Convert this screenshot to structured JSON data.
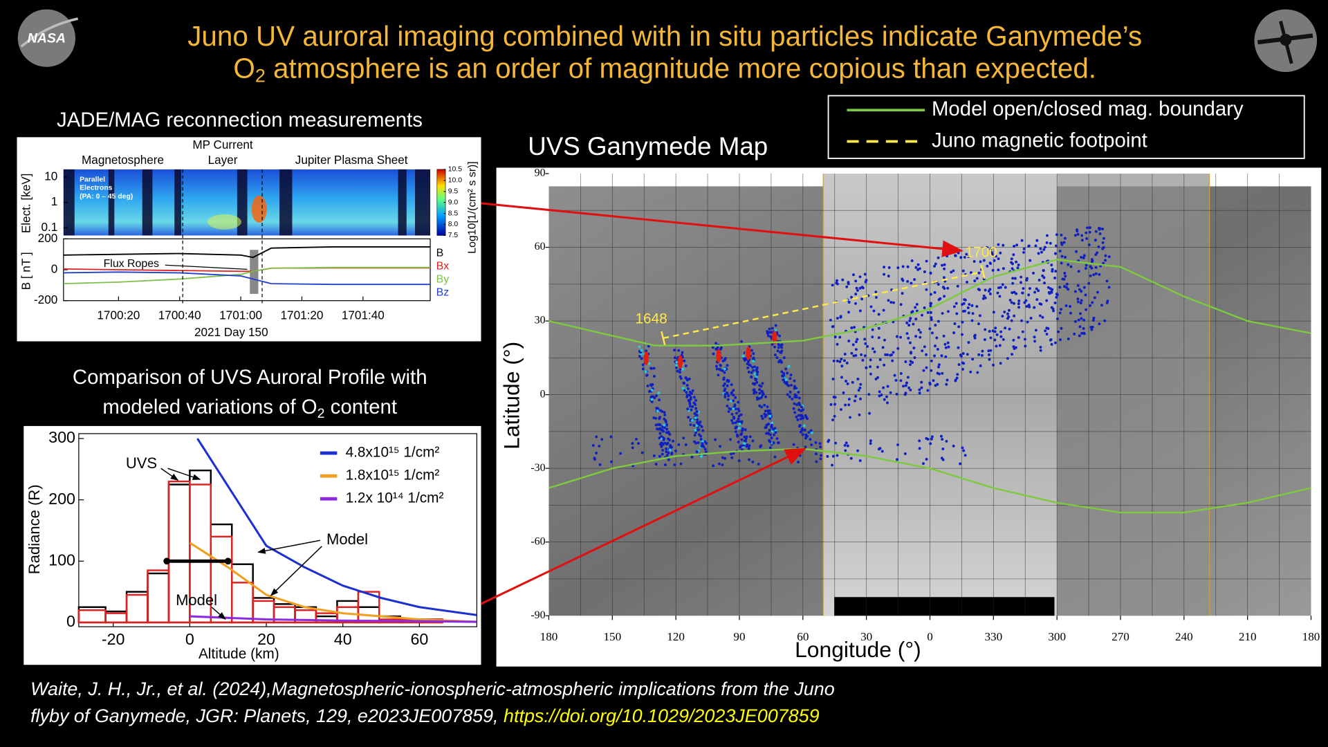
{
  "header": {
    "title_line1": "Juno UV auroral imaging combined with in situ particles indicate Ganymede’s",
    "title_line2": {
      "before": "O",
      "subscript": "2",
      "after": " atmosphere is an order of magnitude more copious than expected."
    }
  },
  "logos": {
    "left": "NASA"
  },
  "citation": {
    "line1": "Waite, J. H., Jr., et al. (2024),Magnetospheric-ionospheric-atmospheric implications from the Juno",
    "line2": "flyby of Ganymede, JGR: Planets, 129, e2023JE007859, ",
    "link": "https://doi.org/10.1029/2023JE007859"
  },
  "chart_data": [
    {
      "type": "spectrogram_timeseries",
      "title": "JADE/MAG reconnection measurements",
      "region_labels": [
        [
          "Magnetosphere"
        ],
        [
          "MP Current",
          "Layer"
        ],
        [
          "Jupiter Plasma Sheet"
        ]
      ],
      "xlim": [
        2,
        122
      ],
      "xticks": [
        {
          "value": 20,
          "label": "1700:20"
        },
        {
          "value": 40,
          "label": "1700:40"
        },
        {
          "value": 60,
          "label": "1701:00"
        },
        {
          "value": 80,
          "label": "1701:20"
        },
        {
          "value": 100,
          "label": "1701:40"
        }
      ],
      "xlabel": "2021 Day 150",
      "boundaries": [
        41,
        67
      ],
      "spectrogram": {
        "label": [
          "Parallel",
          "Electrons",
          "(PA: 0 – 45 deg)"
        ],
        "ylabel": "Elect. [keV]",
        "log_scale": true,
        "ylim": [
          0.05,
          20
        ],
        "yticks": [
          0.1,
          1,
          10
        ],
        "colorbar": {
          "label": "Log10[1/(cm² s sr)]",
          "lim": [
            7.5,
            10.5
          ],
          "ticks": [
            10.5,
            {
              "value": 10,
              "label": "10.0"
            },
            9.5,
            {
              "value": 9,
              "label": "9.0"
            },
            8.5,
            {
              "value": 8,
              "label": "8.0"
            },
            7.5
          ]
        }
      },
      "mag": {
        "ylabel": "B [ nT ]",
        "ylim": [
          -200,
          200
        ],
        "yticks": [
          200,
          0,
          -200
        ],
        "x": [
          2,
          20,
          40,
          60,
          64,
          70,
          90,
          122
        ],
        "series": [
          {
            "name": "B",
            "color": "#000000",
            "values": [
              95,
              100,
              105,
              95,
              80,
              140,
              148,
              148
            ]
          },
          {
            "name": "Bx",
            "color": "#e02020",
            "values": [
              5,
              0,
              -5,
              -10,
              -10,
              10,
              12,
              12
            ]
          },
          {
            "name": "By",
            "color": "#7cc24a",
            "values": [
              -90,
              -80,
              -60,
              -30,
              -10,
              10,
              15,
              15
            ]
          },
          {
            "name": "Bz",
            "color": "#2040d0",
            "values": [
              -20,
              -15,
              -20,
              -40,
              -60,
              -90,
              -95,
              -95
            ]
          }
        ],
        "annotation": "Flux Ropes"
      }
    },
    {
      "type": "line",
      "title_line1": "Comparison of  UVS Auroral Profile with",
      "title_line2": {
        "before": "modeled variations of O",
        "subscript": "2",
        "after": " content"
      },
      "xlabel": "Altitude (km)",
      "ylabel": "Radiance (R)",
      "xlim": [
        -29,
        75
      ],
      "ylim": [
        -7,
        308
      ],
      "xticks": [
        -20,
        0,
        20,
        40,
        60
      ],
      "yticks": [
        0,
        100,
        200,
        300
      ],
      "bins": [
        -29,
        -22,
        -16.5,
        -11,
        -5.5,
        0,
        5.5,
        11,
        16.5,
        22,
        27.5,
        33,
        38.5,
        44,
        49.5,
        55,
        60.5,
        66,
        71.5
      ],
      "histograms": [
        {
          "color": "#000000",
          "values": [
            25,
            18,
            50,
            80,
            225,
            248,
            160,
            95,
            40,
            30,
            25,
            10,
            35,
            25,
            10,
            5,
            5,
            0
          ]
        },
        {
          "color": "#e02020",
          "values": [
            20,
            15,
            45,
            85,
            230,
            225,
            140,
            65,
            35,
            25,
            20,
            15,
            25,
            50,
            5,
            5,
            5,
            0
          ]
        }
      ],
      "series": [
        {
          "name": "4.8x10¹⁵ 1/cm²",
          "color": "#1c2fd0",
          "x": [
            2,
            20,
            30,
            40,
            50,
            60,
            75
          ],
          "values": [
            300,
            125,
            90,
            60,
            40,
            25,
            12
          ]
        },
        {
          "name": "1.8x10¹⁵ 1/cm²",
          "color": "#f0a020",
          "x": [
            0,
            10,
            20,
            30,
            40,
            50,
            60,
            75
          ],
          "values": [
            130,
            90,
            45,
            25,
            15,
            10,
            5,
            1
          ]
        },
        {
          "name": "1.2x 10¹⁴ 1/cm²",
          "color": "#8a2be2",
          "x": [
            0,
            20,
            40,
            60,
            75
          ],
          "values": [
            10,
            5,
            3,
            2,
            1
          ]
        }
      ],
      "error_bar": {
        "y": 100,
        "x": [
          -6,
          10
        ]
      },
      "annotations": [
        "UVS",
        "Model",
        "Model"
      ]
    },
    {
      "type": "map",
      "title": "UVS Ganymede Map",
      "xlabel": "Longitude (°)",
      "ylabel": "Latitude (°)",
      "xlim": [
        180,
        -180
      ],
      "ylim": [
        90,
        -90
      ],
      "xticks": [
        180,
        150,
        120,
        90,
        60,
        30,
        0,
        {
          "value": -30,
          "label": "330"
        },
        {
          "value": -60,
          "label": "300"
        },
        {
          "value": -90,
          "label": "270"
        },
        {
          "value": -120,
          "label": "240"
        },
        {
          "value": -150,
          "label": "210"
        },
        {
          "value": -180,
          "label": "180"
        }
      ],
      "yticks": [
        90,
        60,
        30,
        0,
        -30,
        -60,
        -90
      ],
      "series": [
        {
          "name": "Model open/closed mag. boundary",
          "color": "#7dc93f",
          "style": "solid",
          "x": [
            180,
            150,
            130,
            100,
            60,
            30,
            0,
            -30,
            -60,
            -90,
            -120,
            -150,
            -180,
            -180,
            180,
            150,
            120,
            90,
            60,
            30,
            0,
            -30,
            -60,
            -90,
            -120,
            -150,
            -180
          ],
          "values": [
            30,
            24,
            20,
            20,
            22,
            27,
            35,
            48,
            55,
            52,
            40,
            30,
            25,
            null,
            -38,
            -30,
            -25,
            -23,
            -22,
            -25,
            -30,
            -38,
            -44,
            -48,
            -48,
            -44,
            -38
          ]
        },
        {
          "name": "Juno magnetic footpoint",
          "color": "#ffe94a",
          "style": "dashed",
          "x": [
            126,
            -25
          ],
          "values": [
            23,
            50
          ]
        }
      ],
      "annotations": [
        "1648",
        "1700"
      ]
    }
  ]
}
